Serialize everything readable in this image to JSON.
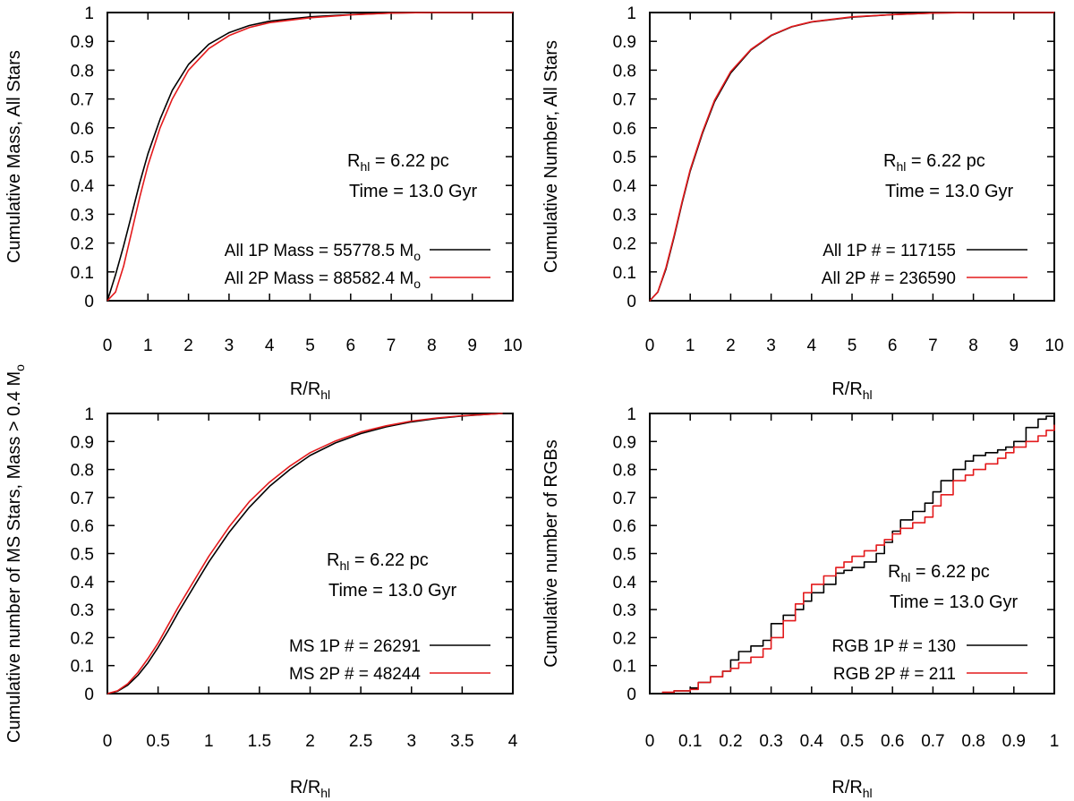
{
  "chart_data": [
    {
      "type": "line",
      "ylabel": "Cumulative Mass, All Stars",
      "xlabel": "R/R",
      "xlabel_sub": "hl",
      "xlim": [
        0,
        10
      ],
      "ylim": [
        0,
        1
      ],
      "xticks": [
        "0",
        "1",
        "2",
        "3",
        "4",
        "5",
        "6",
        "7",
        "8",
        "9",
        "10"
      ],
      "yticks": [
        "0",
        "0.1",
        "0.2",
        "0.3",
        "0.4",
        "0.5",
        "0.6",
        "0.7",
        "0.8",
        "0.9",
        "1"
      ],
      "annotation": {
        "line1_main": "R",
        "line1_sub": "hl",
        "line1_rest": " = 6.22 pc",
        "line2": "Time = 13.0 Gyr"
      },
      "series": [
        {
          "name": "All 1P  Mass = 55778.5 M",
          "name_sub": "o",
          "color": "#000000",
          "x": [
            0,
            0.2,
            0.4,
            0.6,
            0.8,
            1.0,
            1.3,
            1.6,
            2.0,
            2.5,
            3.0,
            3.5,
            4.0,
            5.0,
            6.0,
            7.0,
            8.0,
            10.0
          ],
          "y": [
            0,
            0.09,
            0.19,
            0.3,
            0.41,
            0.51,
            0.63,
            0.73,
            0.82,
            0.89,
            0.93,
            0.955,
            0.97,
            0.985,
            0.993,
            0.998,
            1.0,
            1.0
          ]
        },
        {
          "name": "All 2P Mass = 88582.4 M",
          "name_sub": "o",
          "color": "#e31a1c",
          "x": [
            0,
            0.2,
            0.4,
            0.6,
            0.8,
            1.0,
            1.3,
            1.6,
            2.0,
            2.5,
            3.0,
            3.5,
            4.0,
            5.0,
            6.0,
            7.0,
            8.0,
            10.0
          ],
          "y": [
            0,
            0.03,
            0.12,
            0.24,
            0.36,
            0.47,
            0.6,
            0.7,
            0.8,
            0.875,
            0.92,
            0.948,
            0.965,
            0.982,
            0.992,
            0.998,
            1.0,
            1.0
          ]
        }
      ]
    },
    {
      "type": "line",
      "ylabel": "Cumulative Number, All Stars",
      "xlabel": "R/R",
      "xlabel_sub": "hl",
      "xlim": [
        0,
        10
      ],
      "ylim": [
        0,
        1
      ],
      "xticks": [
        "0",
        "1",
        "2",
        "3",
        "4",
        "5",
        "6",
        "7",
        "8",
        "9",
        "10"
      ],
      "yticks": [
        "0",
        "0.1",
        "0.2",
        "0.3",
        "0.4",
        "0.5",
        "0.6",
        "0.7",
        "0.8",
        "0.9",
        "1"
      ],
      "annotation": {
        "line1_main": "R",
        "line1_sub": "hl",
        "line1_rest": " = 6.22 pc",
        "line2": "Time = 13.0 Gyr"
      },
      "series": [
        {
          "name": "All 1P # = 117155",
          "name_sub": "",
          "color": "#000000",
          "x": [
            0,
            0.2,
            0.4,
            0.6,
            0.8,
            1.0,
            1.3,
            1.6,
            2.0,
            2.5,
            3.0,
            3.5,
            4.0,
            5.0,
            6.0,
            7.0,
            8.0,
            10.0
          ],
          "y": [
            0,
            0.03,
            0.11,
            0.22,
            0.34,
            0.45,
            0.58,
            0.69,
            0.79,
            0.87,
            0.92,
            0.95,
            0.967,
            0.984,
            0.993,
            0.998,
            1.0,
            1.0
          ]
        },
        {
          "name": "All 2P # = 236590",
          "name_sub": "",
          "color": "#e31a1c",
          "x": [
            0,
            0.2,
            0.4,
            0.6,
            0.8,
            1.0,
            1.3,
            1.6,
            2.0,
            2.5,
            3.0,
            3.5,
            4.0,
            5.0,
            6.0,
            7.0,
            8.0,
            10.0
          ],
          "y": [
            0,
            0.03,
            0.115,
            0.225,
            0.345,
            0.455,
            0.585,
            0.695,
            0.795,
            0.872,
            0.921,
            0.951,
            0.968,
            0.985,
            0.993,
            0.998,
            1.0,
            1.0
          ]
        }
      ]
    },
    {
      "type": "line",
      "ylabel": "Cumulative number of MS Stars, Mass > 0.4 M",
      "ylabel_sub": "o",
      "xlabel": "R/R",
      "xlabel_sub": "hl",
      "xlim": [
        0,
        4
      ],
      "ylim": [
        0,
        1
      ],
      "xticks": [
        "0",
        "0.5",
        "1",
        "1.5",
        "2",
        "2.5",
        "3",
        "3.5",
        "4"
      ],
      "yticks": [
        "0",
        "0.1",
        "0.2",
        "0.3",
        "0.4",
        "0.5",
        "0.6",
        "0.7",
        "0.8",
        "0.9",
        "1"
      ],
      "annotation": {
        "line1_main": "R",
        "line1_sub": "hl",
        "line1_rest": " = 6.22 pc",
        "line2": "Time = 13.0 Gyr"
      },
      "series": [
        {
          "name": "MS 1P # = 26291",
          "name_sub": "",
          "color": "#000000",
          "x": [
            0,
            0.1,
            0.2,
            0.3,
            0.4,
            0.5,
            0.6,
            0.7,
            0.8,
            0.9,
            1.0,
            1.2,
            1.4,
            1.6,
            1.8,
            2.0,
            2.25,
            2.5,
            2.75,
            3.0,
            3.25,
            3.5,
            3.75,
            3.9
          ],
          "y": [
            0,
            0.008,
            0.03,
            0.065,
            0.11,
            0.165,
            0.225,
            0.29,
            0.35,
            0.41,
            0.47,
            0.575,
            0.665,
            0.74,
            0.8,
            0.85,
            0.895,
            0.928,
            0.952,
            0.97,
            0.982,
            0.991,
            0.997,
            1.0
          ]
        },
        {
          "name": "MS 2P # = 48244",
          "name_sub": "",
          "color": "#e31a1c",
          "x": [
            0,
            0.1,
            0.2,
            0.3,
            0.4,
            0.5,
            0.6,
            0.7,
            0.8,
            0.9,
            1.0,
            1.2,
            1.4,
            1.6,
            1.8,
            2.0,
            2.25,
            2.5,
            2.75,
            3.0,
            3.25,
            3.5,
            3.75,
            3.9
          ],
          "y": [
            0,
            0.01,
            0.035,
            0.075,
            0.125,
            0.18,
            0.245,
            0.31,
            0.37,
            0.43,
            0.49,
            0.595,
            0.685,
            0.755,
            0.812,
            0.86,
            0.902,
            0.934,
            0.956,
            0.973,
            0.984,
            0.992,
            0.997,
            1.0
          ]
        }
      ]
    },
    {
      "type": "line",
      "step": true,
      "ylabel": "Cumulative number of RGBs",
      "xlabel": "R/R",
      "xlabel_sub": "hl",
      "xlim": [
        0,
        1
      ],
      "ylim": [
        0,
        1
      ],
      "xticks": [
        "0",
        "0.1",
        "0.2",
        "0.3",
        "0.4",
        "0.5",
        "0.6",
        "0.7",
        "0.8",
        "0.9",
        "1"
      ],
      "yticks": [
        "0",
        "0.1",
        "0.2",
        "0.3",
        "0.4",
        "0.5",
        "0.6",
        "0.7",
        "0.8",
        "0.9",
        "1"
      ],
      "annotation": {
        "line1_main": "R",
        "line1_sub": "hl",
        "line1_rest": " = 6.22 pc",
        "line2": "Time = 13.0 Gyr"
      },
      "series": [
        {
          "name": "RGB 1P # = 130",
          "name_sub": "",
          "color": "#000000",
          "x": [
            0.03,
            0.06,
            0.1,
            0.12,
            0.15,
            0.18,
            0.2,
            0.22,
            0.25,
            0.28,
            0.3,
            0.33,
            0.36,
            0.38,
            0.4,
            0.43,
            0.46,
            0.48,
            0.5,
            0.53,
            0.56,
            0.58,
            0.6,
            0.62,
            0.65,
            0.68,
            0.7,
            0.72,
            0.75,
            0.78,
            0.8,
            0.83,
            0.86,
            0.88,
            0.9,
            0.93,
            0.96,
            0.98,
            1.0
          ],
          "y": [
            0.0,
            0.01,
            0.02,
            0.04,
            0.06,
            0.08,
            0.12,
            0.15,
            0.17,
            0.19,
            0.25,
            0.28,
            0.3,
            0.33,
            0.36,
            0.39,
            0.43,
            0.44,
            0.45,
            0.47,
            0.5,
            0.54,
            0.58,
            0.62,
            0.65,
            0.68,
            0.72,
            0.76,
            0.8,
            0.83,
            0.85,
            0.86,
            0.87,
            0.88,
            0.9,
            0.95,
            0.98,
            0.99,
            1.0
          ]
        },
        {
          "name": "RGB 2P # = 211",
          "name_sub": "",
          "color": "#e31a1c",
          "x": [
            0.03,
            0.06,
            0.1,
            0.12,
            0.15,
            0.18,
            0.2,
            0.22,
            0.25,
            0.28,
            0.3,
            0.33,
            0.36,
            0.38,
            0.4,
            0.43,
            0.46,
            0.48,
            0.5,
            0.53,
            0.56,
            0.58,
            0.6,
            0.62,
            0.65,
            0.68,
            0.7,
            0.72,
            0.75,
            0.78,
            0.8,
            0.83,
            0.86,
            0.88,
            0.9,
            0.93,
            0.96,
            0.98,
            1.0
          ],
          "y": [
            0.005,
            0.01,
            0.015,
            0.04,
            0.06,
            0.08,
            0.09,
            0.11,
            0.13,
            0.16,
            0.2,
            0.26,
            0.32,
            0.36,
            0.39,
            0.42,
            0.45,
            0.47,
            0.49,
            0.51,
            0.53,
            0.55,
            0.57,
            0.59,
            0.61,
            0.63,
            0.67,
            0.71,
            0.76,
            0.78,
            0.8,
            0.82,
            0.84,
            0.86,
            0.88,
            0.9,
            0.92,
            0.94,
            0.96
          ]
        }
      ]
    }
  ]
}
